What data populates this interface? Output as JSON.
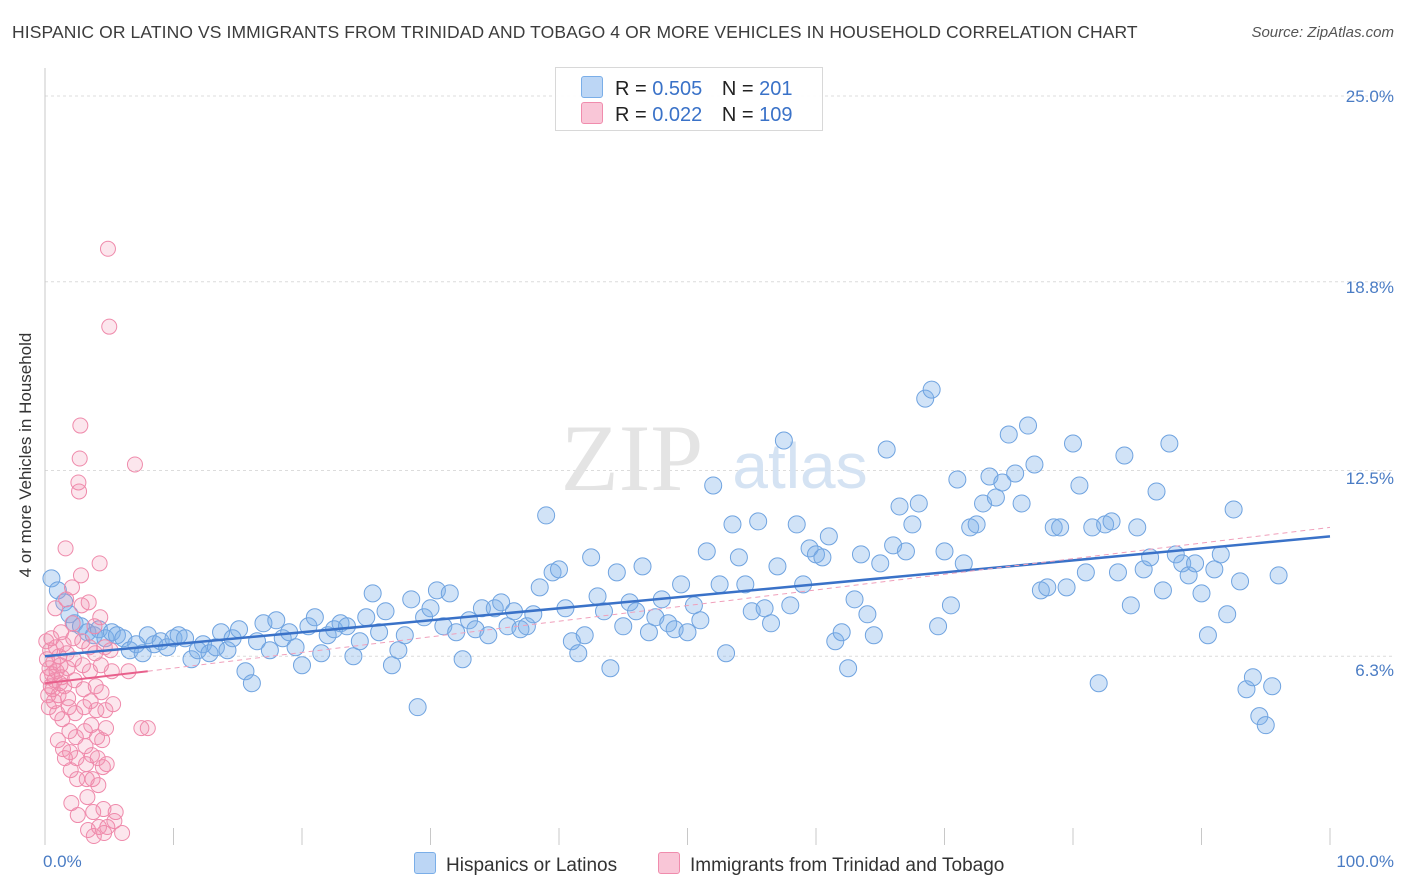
{
  "title": "HISPANIC OR LATINO VS IMMIGRANTS FROM TRINIDAD AND TOBAGO 4 OR MORE VEHICLES IN HOUSEHOLD CORRELATION CHART",
  "source": "Source: ZipAtlas.com",
  "watermark": {
    "zip": "ZIP",
    "atlas": "atlas"
  },
  "colors": {
    "blue": "#7aaee8",
    "blue_line": "#3a72c8",
    "pink": "#f08cad",
    "pink_line": "#e8608c",
    "tick_text": "#4a7cc4"
  },
  "legend": {
    "rows": [
      {
        "r_label": "R =",
        "r_value": "0.505",
        "n_label": "N =",
        "n_value": "201"
      },
      {
        "r_label": "R =",
        "r_value": "0.022",
        "n_label": "N =",
        "n_value": "109"
      }
    ]
  },
  "chart_data": {
    "type": "scatter",
    "title": "HISPANIC OR LATINO VS IMMIGRANTS FROM TRINIDAD AND TOBAGO 4 OR MORE VEHICLES IN HOUSEHOLD CORRELATION CHART",
    "xlabel": "",
    "ylabel": "4 or more Vehicles in Household",
    "xlim": [
      0,
      100
    ],
    "ylim": [
      0,
      25.6
    ],
    "x_tick_labels": [
      "0.0%",
      "100.0%"
    ],
    "y_ticks": [
      {
        "value": 6.3,
        "label": "6.3%"
      },
      {
        "value": 12.5,
        "label": "12.5%"
      },
      {
        "value": 18.8,
        "label": "18.8%"
      },
      {
        "value": 25.0,
        "label": "25.0%"
      }
    ],
    "grid": true,
    "legend_position": "top-center and bottom",
    "series": [
      {
        "name": "Hispanics or Latinos",
        "color": "#7aaee8",
        "trend": {
          "x": [
            0,
            100
          ],
          "y": [
            6.3,
            10.3
          ]
        },
        "points": [
          [
            0.5,
            8.9
          ],
          [
            1.0,
            8.5
          ],
          [
            1.5,
            8.1
          ],
          [
            1.9,
            7.7
          ],
          [
            2.3,
            7.4
          ],
          [
            2.8,
            7.3
          ],
          [
            3.3,
            7.1
          ],
          [
            3.8,
            7.0
          ],
          [
            4.2,
            7.2
          ],
          [
            4.7,
            6.9
          ],
          [
            5.2,
            7.1
          ],
          [
            5.6,
            7.0
          ],
          [
            6.1,
            6.9
          ],
          [
            6.6,
            6.5
          ],
          [
            7.1,
            6.7
          ],
          [
            7.6,
            6.4
          ],
          [
            8.0,
            7.0
          ],
          [
            8.5,
            6.7
          ],
          [
            9.0,
            6.8
          ],
          [
            9.5,
            6.6
          ],
          [
            10.0,
            6.9
          ],
          [
            10.4,
            7.0
          ],
          [
            10.9,
            6.9
          ],
          [
            11.4,
            6.2
          ],
          [
            11.9,
            6.5
          ],
          [
            12.3,
            6.7
          ],
          [
            12.8,
            6.4
          ],
          [
            13.3,
            6.6
          ],
          [
            13.7,
            7.1
          ],
          [
            14.2,
            6.5
          ],
          [
            14.6,
            6.9
          ],
          [
            15.1,
            7.2
          ],
          [
            15.6,
            5.8
          ],
          [
            16.1,
            5.4
          ],
          [
            16.5,
            6.8
          ],
          [
            17.0,
            7.4
          ],
          [
            17.5,
            6.5
          ],
          [
            18.0,
            7.5
          ],
          [
            18.5,
            6.9
          ],
          [
            19.0,
            7.1
          ],
          [
            19.5,
            6.6
          ],
          [
            20.0,
            6.0
          ],
          [
            20.5,
            7.3
          ],
          [
            21.0,
            7.6
          ],
          [
            21.5,
            6.4
          ],
          [
            22.0,
            7.0
          ],
          [
            22.5,
            7.2
          ],
          [
            23.0,
            7.4
          ],
          [
            23.5,
            7.3
          ],
          [
            24.0,
            6.3
          ],
          [
            24.5,
            6.8
          ],
          [
            25.0,
            7.6
          ],
          [
            25.5,
            8.4
          ],
          [
            26.0,
            7.1
          ],
          [
            26.5,
            7.8
          ],
          [
            27.0,
            6.0
          ],
          [
            27.5,
            6.5
          ],
          [
            28.0,
            7.0
          ],
          [
            28.5,
            8.2
          ],
          [
            29.0,
            4.6
          ],
          [
            29.5,
            7.6
          ],
          [
            30.0,
            7.9
          ],
          [
            30.5,
            8.5
          ],
          [
            31.0,
            7.3
          ],
          [
            31.5,
            8.4
          ],
          [
            32.0,
            7.1
          ],
          [
            32.5,
            6.2
          ],
          [
            33.0,
            7.5
          ],
          [
            33.5,
            7.2
          ],
          [
            34.0,
            7.9
          ],
          [
            34.5,
            7.0
          ],
          [
            35.0,
            7.9
          ],
          [
            35.5,
            8.1
          ],
          [
            36.0,
            7.3
          ],
          [
            36.5,
            7.8
          ],
          [
            37.0,
            7.2
          ],
          [
            37.5,
            7.3
          ],
          [
            38.0,
            7.7
          ],
          [
            38.5,
            8.6
          ],
          [
            39.0,
            11.0
          ],
          [
            39.5,
            9.1
          ],
          [
            40.0,
            9.2
          ],
          [
            40.5,
            7.9
          ],
          [
            41.0,
            6.8
          ],
          [
            41.5,
            6.4
          ],
          [
            42.0,
            7.0
          ],
          [
            42.5,
            9.6
          ],
          [
            43.0,
            8.3
          ],
          [
            43.5,
            7.8
          ],
          [
            44.0,
            5.9
          ],
          [
            44.5,
            9.1
          ],
          [
            45.0,
            7.3
          ],
          [
            45.5,
            8.1
          ],
          [
            46.0,
            7.8
          ],
          [
            46.5,
            9.3
          ],
          [
            47.0,
            7.1
          ],
          [
            47.5,
            7.6
          ],
          [
            48.0,
            8.2
          ],
          [
            48.5,
            7.4
          ],
          [
            49.0,
            7.2
          ],
          [
            49.5,
            8.7
          ],
          [
            50.0,
            7.1
          ],
          [
            50.5,
            8.0
          ],
          [
            51.0,
            7.5
          ],
          [
            51.5,
            9.8
          ],
          [
            52.0,
            12.0
          ],
          [
            52.5,
            8.7
          ],
          [
            53.0,
            6.4
          ],
          [
            53.5,
            10.7
          ],
          [
            54.0,
            9.6
          ],
          [
            54.5,
            8.7
          ],
          [
            55.0,
            7.8
          ],
          [
            55.5,
            10.8
          ],
          [
            56.0,
            7.9
          ],
          [
            56.5,
            7.4
          ],
          [
            57.0,
            9.3
          ],
          [
            57.5,
            13.5
          ],
          [
            58.0,
            8.0
          ],
          [
            58.5,
            10.7
          ],
          [
            59.0,
            8.7
          ],
          [
            59.5,
            9.9
          ],
          [
            60.0,
            9.7
          ],
          [
            60.5,
            9.6
          ],
          [
            61.0,
            10.3
          ],
          [
            61.5,
            6.8
          ],
          [
            62.0,
            7.1
          ],
          [
            62.5,
            5.9
          ],
          [
            63.0,
            8.2
          ],
          [
            63.5,
            9.7
          ],
          [
            64.0,
            7.7
          ],
          [
            64.5,
            7.0
          ],
          [
            65.0,
            9.4
          ],
          [
            65.5,
            13.2
          ],
          [
            66.0,
            10.0
          ],
          [
            66.5,
            11.3
          ],
          [
            67.0,
            9.8
          ],
          [
            67.5,
            10.7
          ],
          [
            68.0,
            11.4
          ],
          [
            68.5,
            14.9
          ],
          [
            69.0,
            15.2
          ],
          [
            69.5,
            7.3
          ],
          [
            70.0,
            9.8
          ],
          [
            70.5,
            8.0
          ],
          [
            71.0,
            12.2
          ],
          [
            71.5,
            9.4
          ],
          [
            72.0,
            10.6
          ],
          [
            72.5,
            10.7
          ],
          [
            73.0,
            11.4
          ],
          [
            73.5,
            12.3
          ],
          [
            74.0,
            11.6
          ],
          [
            74.5,
            12.1
          ],
          [
            75.0,
            13.7
          ],
          [
            75.5,
            12.4
          ],
          [
            76.0,
            11.4
          ],
          [
            76.5,
            14.0
          ],
          [
            77.0,
            12.7
          ],
          [
            77.5,
            8.5
          ],
          [
            78.0,
            8.6
          ],
          [
            78.5,
            10.6
          ],
          [
            79.0,
            10.6
          ],
          [
            79.5,
            8.6
          ],
          [
            80.0,
            13.4
          ],
          [
            80.5,
            12.0
          ],
          [
            81.0,
            9.1
          ],
          [
            81.5,
            10.6
          ],
          [
            82.0,
            5.4
          ],
          [
            82.5,
            10.7
          ],
          [
            83.0,
            10.8
          ],
          [
            83.5,
            9.1
          ],
          [
            84.0,
            13.0
          ],
          [
            84.5,
            8.0
          ],
          [
            85.0,
            10.6
          ],
          [
            85.5,
            9.2
          ],
          [
            86.0,
            9.6
          ],
          [
            86.5,
            11.8
          ],
          [
            87.0,
            8.5
          ],
          [
            87.5,
            13.4
          ],
          [
            88.0,
            9.7
          ],
          [
            88.5,
            9.4
          ],
          [
            89.0,
            9.0
          ],
          [
            89.5,
            9.4
          ],
          [
            90.0,
            8.4
          ],
          [
            90.5,
            7.0
          ],
          [
            91.0,
            9.2
          ],
          [
            91.5,
            9.7
          ],
          [
            92.0,
            7.7
          ],
          [
            92.5,
            11.2
          ],
          [
            93.0,
            8.8
          ],
          [
            93.5,
            5.2
          ],
          [
            94.0,
            5.6
          ],
          [
            94.5,
            4.3
          ],
          [
            95.0,
            4.0
          ],
          [
            95.5,
            5.3
          ],
          [
            96.0,
            9.0
          ]
        ]
      },
      {
        "name": "Immigrants from Trinidad and Tobago",
        "color": "#f08cad",
        "trend": {
          "x": [
            0,
            8
          ],
          "y": [
            5.4,
            5.8
          ]
        },
        "points": [
          [
            0.1,
            6.8
          ],
          [
            0.15,
            6.2
          ],
          [
            0.2,
            5.6
          ],
          [
            0.25,
            5.0
          ],
          [
            0.3,
            4.6
          ],
          [
            0.35,
            5.9
          ],
          [
            0.4,
            6.5
          ],
          [
            0.45,
            5.3
          ],
          [
            0.5,
            6.9
          ],
          [
            0.55,
            5.7
          ],
          [
            0.6,
            5.2
          ],
          [
            0.65,
            6.1
          ],
          [
            0.7,
            4.8
          ],
          [
            0.75,
            5.5
          ],
          [
            0.8,
            7.9
          ],
          [
            0.85,
            6.6
          ],
          [
            0.9,
            5.8
          ],
          [
            0.95,
            4.4
          ],
          [
            1.0,
            3.5
          ],
          [
            1.05,
            5.0
          ],
          [
            1.1,
            6.3
          ],
          [
            1.15,
            5.4
          ],
          [
            1.2,
            6.0
          ],
          [
            1.25,
            7.1
          ],
          [
            1.3,
            5.6
          ],
          [
            1.35,
            4.2
          ],
          [
            1.4,
            3.2
          ],
          [
            1.45,
            6.7
          ],
          [
            1.5,
            5.3
          ],
          [
            1.55,
            2.9
          ],
          [
            1.6,
            9.9
          ],
          [
            1.65,
            8.2
          ],
          [
            1.7,
            6.4
          ],
          [
            1.75,
            5.9
          ],
          [
            1.8,
            4.9
          ],
          [
            1.85,
            4.6
          ],
          [
            1.9,
            3.8
          ],
          [
            1.95,
            3.1
          ],
          [
            2.0,
            2.5
          ],
          [
            2.05,
            1.4
          ],
          [
            2.1,
            8.6
          ],
          [
            2.15,
            7.4
          ],
          [
            2.2,
            6.9
          ],
          [
            2.25,
            6.2
          ],
          [
            2.3,
            5.5
          ],
          [
            2.35,
            4.4
          ],
          [
            2.4,
            3.6
          ],
          [
            2.45,
            2.9
          ],
          [
            2.5,
            2.2
          ],
          [
            2.55,
            1.0
          ],
          [
            2.6,
            12.1
          ],
          [
            2.65,
            11.8
          ],
          [
            2.7,
            12.9
          ],
          [
            2.75,
            14.0
          ],
          [
            2.8,
            9.0
          ],
          [
            2.85,
            8.0
          ],
          [
            2.9,
            6.8
          ],
          [
            2.95,
            6.0
          ],
          [
            3.0,
            5.2
          ],
          [
            3.05,
            4.6
          ],
          [
            3.1,
            3.8
          ],
          [
            3.15,
            3.3
          ],
          [
            3.2,
            2.7
          ],
          [
            3.25,
            2.2
          ],
          [
            3.3,
            1.6
          ],
          [
            3.35,
            0.5
          ],
          [
            3.4,
            8.1
          ],
          [
            3.45,
            6.6
          ],
          [
            3.5,
            5.8
          ],
          [
            3.55,
            4.8
          ],
          [
            3.6,
            4.0
          ],
          [
            3.65,
            3.0
          ],
          [
            3.7,
            2.2
          ],
          [
            3.75,
            1.1
          ],
          [
            3.8,
            0.3
          ],
          [
            3.85,
            7.3
          ],
          [
            3.9,
            6.4
          ],
          [
            3.95,
            5.3
          ],
          [
            4.0,
            4.5
          ],
          [
            4.05,
            3.6
          ],
          [
            4.1,
            2.9
          ],
          [
            4.15,
            2.0
          ],
          [
            4.2,
            0.6
          ],
          [
            4.25,
            9.4
          ],
          [
            4.3,
            7.6
          ],
          [
            4.35,
            6.0
          ],
          [
            4.4,
            5.1
          ],
          [
            4.45,
            3.5
          ],
          [
            4.5,
            2.6
          ],
          [
            4.55,
            1.2
          ],
          [
            4.6,
            0.4
          ],
          [
            4.65,
            6.6
          ],
          [
            4.7,
            4.5
          ],
          [
            4.75,
            3.9
          ],
          [
            4.8,
            2.7
          ],
          [
            4.85,
            0.6
          ],
          [
            4.9,
            19.9
          ],
          [
            5.0,
            17.3
          ],
          [
            5.1,
            6.5
          ],
          [
            5.2,
            5.8
          ],
          [
            5.3,
            4.7
          ],
          [
            5.4,
            0.8
          ],
          [
            5.5,
            1.1
          ],
          [
            6.0,
            0.4
          ],
          [
            6.5,
            5.8
          ],
          [
            7.0,
            12.7
          ],
          [
            7.5,
            3.9
          ],
          [
            8.0,
            3.9
          ]
        ]
      }
    ]
  },
  "bottom_legend": [
    "Hispanics or Latinos",
    "Immigrants from Trinidad and Tobago"
  ]
}
